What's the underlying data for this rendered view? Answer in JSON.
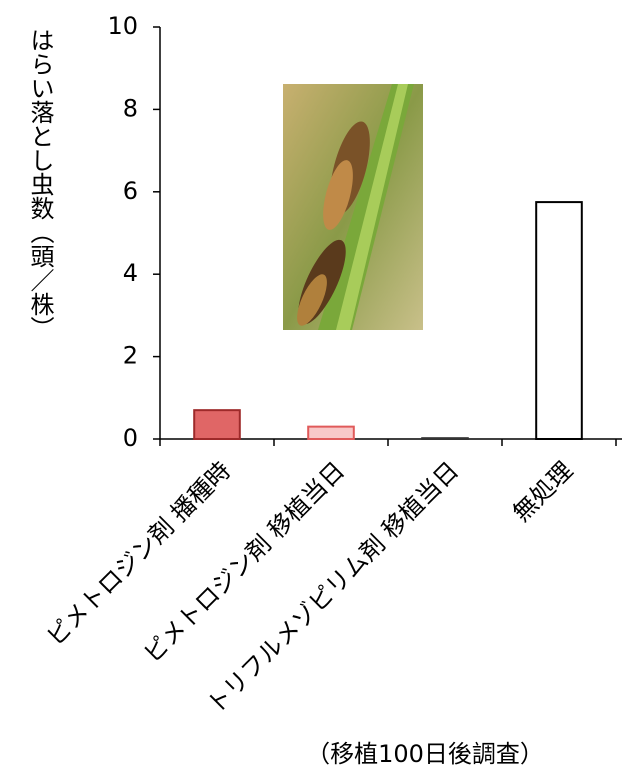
{
  "chart_data": {
    "type": "bar",
    "y_label": "はらい落とし虫数（頭／株）",
    "note": "（移植100日後調査）",
    "categories": [
      "ピメトロジン剤 播種時",
      "ピメトロジン剤 移植当日",
      "トリフルメゾピリム剤 移植当日",
      "無処理"
    ],
    "values": [
      0.7,
      0.3,
      0.02,
      5.75
    ],
    "colors": [
      "#e06666",
      "#f8c8c8",
      "#ffffff",
      "#ffffff"
    ],
    "edgecolors": [
      "#9e2a2a",
      "#e05a5a",
      "#333333",
      "#000000"
    ],
    "ylim": [
      0,
      10
    ],
    "yticks": [
      0,
      2,
      4,
      6,
      8,
      10
    ],
    "grid": false
  }
}
